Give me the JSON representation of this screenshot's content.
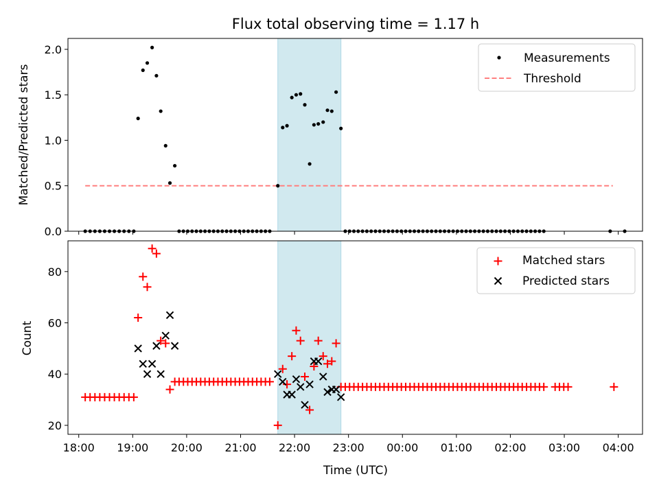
{
  "chart_data": [
    {
      "type": "scatter",
      "title": "Flux total observing time = 1.17 h",
      "xlabel": "",
      "ylabel": "Matched/Predicted stars",
      "xlim": [
        17.8,
        28.45
      ],
      "ylim": [
        0,
        2.12
      ],
      "yticks": [
        0.0,
        0.5,
        1.0,
        1.5,
        2.0
      ],
      "ytick_labels": [
        "0.0",
        "0.5",
        "1.0",
        "1.5",
        "2.0"
      ],
      "legend_position": "top-right",
      "highlight_span": {
        "x_start": 21.69,
        "x_end": 22.86,
        "color": "#d1e9ef"
      },
      "threshold": {
        "name": "Threshold",
        "value": 0.5,
        "x_start": 18.12,
        "x_end": 27.9,
        "color": "#ff7f7f"
      },
      "series": [
        {
          "name": "Measurements",
          "color": "#000000",
          "x": [
            19.1,
            19.19,
            19.27,
            19.36,
            19.44,
            19.52,
            19.61,
            19.69,
            19.78,
            21.69,
            21.78,
            21.86,
            21.95,
            22.03,
            22.11,
            22.19,
            22.28,
            22.36,
            22.44,
            22.53,
            22.61,
            22.69,
            22.77,
            22.86
          ],
          "y": [
            1.24,
            1.77,
            1.85,
            2.02,
            1.71,
            1.32,
            0.94,
            0.53,
            0.72,
            0.5,
            1.14,
            1.16,
            1.47,
            1.5,
            1.51,
            1.39,
            0.74,
            1.17,
            1.18,
            1.2,
            1.33,
            1.32,
            1.53,
            1.13
          ],
          "zero_ranges": [
            [
              18.12,
              19.02,
              0.09
            ],
            [
              19.86,
              21.61,
              0.08
            ],
            [
              22.94,
              26.62,
              0.08
            ]
          ],
          "zero_points": [
            27.85,
            28.12
          ]
        }
      ]
    },
    {
      "type": "scatter",
      "title": "",
      "xlabel": "Time (UTC)",
      "ylabel": "Count",
      "xlim": [
        17.8,
        28.45
      ],
      "ylim": [
        16.5,
        92
      ],
      "yticks": [
        20,
        40,
        60,
        80
      ],
      "ytick_labels": [
        "20",
        "40",
        "60",
        "80"
      ],
      "xticks": [
        18,
        19,
        20,
        21,
        22,
        23,
        24,
        25,
        26,
        27,
        28
      ],
      "xtick_labels": [
        "18:00",
        "19:00",
        "20:00",
        "21:00",
        "22:00",
        "23:00",
        "00:00",
        "01:00",
        "02:00",
        "03:00",
        "04:00"
      ],
      "legend_position": "top-right",
      "highlight_span": {
        "x_start": 21.69,
        "x_end": 22.86,
        "color": "#d1e9ef"
      },
      "series": [
        {
          "name": "Matched stars",
          "marker": "plus",
          "color": "#ff0000",
          "x": [
            19.1,
            19.19,
            19.27,
            19.36,
            19.44,
            19.52,
            19.61,
            19.69,
            21.69,
            21.78,
            21.86,
            21.95,
            22.03,
            22.11,
            22.19,
            22.28,
            22.36,
            22.44,
            22.53,
            22.61,
            22.69,
            22.77
          ],
          "y": [
            62,
            78,
            74,
            89,
            87,
            53,
            52,
            34,
            20,
            42,
            36,
            47,
            57,
            53,
            39,
            26,
            43,
            53,
            47,
            44,
            45,
            52
          ],
          "constant_ranges": [
            [
              18.12,
              19.02,
              0.09,
              31
            ],
            [
              19.78,
              21.61,
              0.08,
              37
            ],
            [
              22.86,
              26.62,
              0.08,
              35
            ],
            [
              26.83,
              27.08,
              0.08,
              35
            ]
          ],
          "extra_points": [
            [
              27.92,
              35
            ]
          ]
        },
        {
          "name": "Predicted stars",
          "marker": "x",
          "color": "#000000",
          "x": [
            19.1,
            19.19,
            19.27,
            19.36,
            19.44,
            19.52,
            19.61,
            19.69,
            19.78,
            21.69,
            21.78,
            21.86,
            21.95,
            22.03,
            22.11,
            22.19,
            22.28,
            22.36,
            22.44,
            22.53,
            22.61,
            22.69,
            22.77,
            22.86
          ],
          "y": [
            50,
            44,
            40,
            44,
            51,
            40,
            55,
            63,
            51,
            40,
            37,
            32,
            32,
            38,
            35,
            28,
            36,
            45,
            45,
            39,
            33,
            34,
            34,
            31
          ]
        }
      ]
    }
  ]
}
